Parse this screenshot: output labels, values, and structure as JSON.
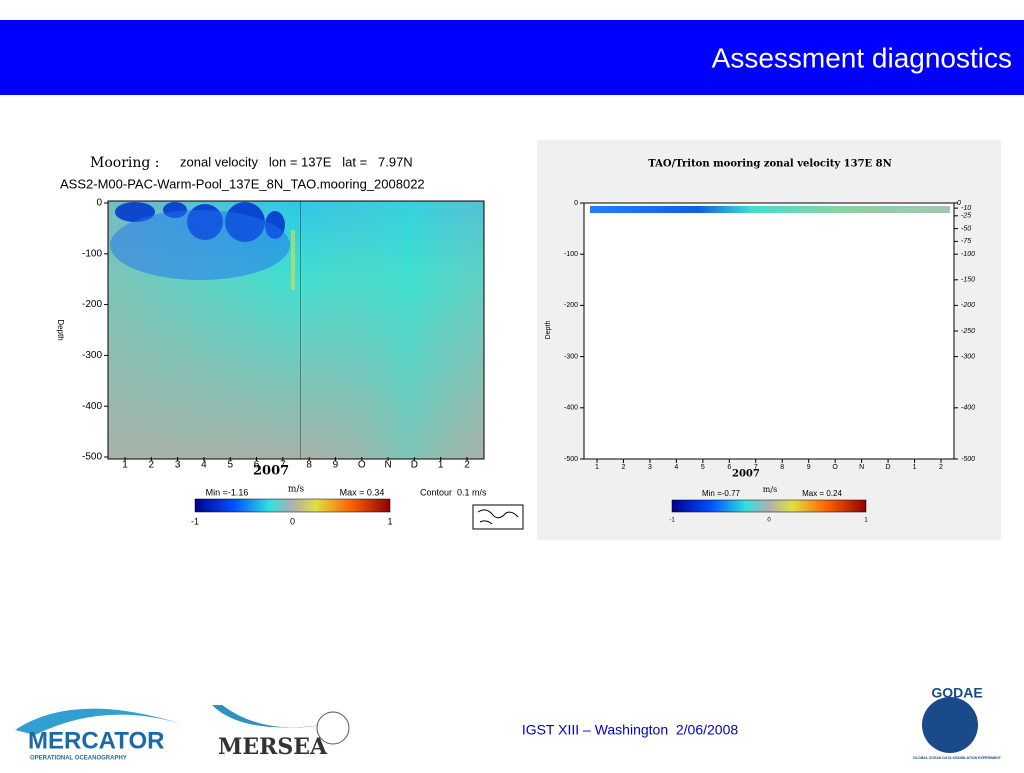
{
  "header": {
    "title": "Assessment diagnostics"
  },
  "left_panel": {
    "title_label": "Mooring :",
    "title": "zonal velocity   lon = 137E   lat =   7.97N",
    "subtitle": "ASS2-M00-PAC-Warm-Pool_137E_8N_TAO.mooring_2008022",
    "y_label": "Depth",
    "y_ticks": [
      "0",
      "-100",
      "-200",
      "-300",
      "-400",
      "-500"
    ],
    "x_ticks": [
      "1",
      "2",
      "3",
      "4",
      "5",
      "6",
      "7",
      "8",
      "9",
      "O",
      "N",
      "D",
      "1",
      "2"
    ],
    "year": "2007",
    "min": "Min =-1.16",
    "units": "m/s",
    "max": "Max = 0.34",
    "contour": "Contour  0.1 m/s",
    "colorbar_ticks": [
      "-1",
      "0",
      "1"
    ]
  },
  "right_panel": {
    "title": "TAO/Triton mooring zonal velocity 137E 8N",
    "y_label": "Depth",
    "y_ticks": [
      "0",
      "-100",
      "-200",
      "-300",
      "-400",
      "-500"
    ],
    "y2_ticks": [
      "0",
      "-10",
      "-25",
      "-50",
      "-75",
      "-100",
      "-150",
      "-200",
      "-250",
      "-300",
      "-400",
      "-500"
    ],
    "x_ticks": [
      "1",
      "2",
      "3",
      "4",
      "5",
      "6",
      "7",
      "8",
      "9",
      "O",
      "N",
      "D",
      "1",
      "2"
    ],
    "year": "2007",
    "min": "Min =-0.77",
    "units": "m/s",
    "max": "Max = 0.24",
    "colorbar_ticks": [
      "-1",
      "0",
      "1"
    ]
  },
  "footer": {
    "text": "IGST XIII – Washington  2/06/2008",
    "logo1": "MERCATOR",
    "logo1_sub": "OPERATIONAL OCEANOGRAPHY",
    "logo2": "MERSEA",
    "logo3": "GODAE",
    "logo3_sub": "GLOBAL OCEAN DATA ASSIMILATION EXPERIMENT"
  }
}
